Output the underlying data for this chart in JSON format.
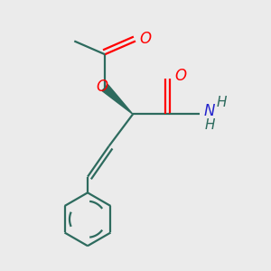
{
  "bg_color": "#ebebeb",
  "bond_color": "#2d6b5e",
  "bond_width": 1.6,
  "o_color": "#ff0000",
  "n_color": "#2222cc",
  "fig_size": [
    3.0,
    3.0
  ],
  "dpi": 100,
  "xlim": [
    0,
    10
  ],
  "ylim": [
    0,
    10
  ],
  "bond_color_dark": "#2d6b5e",
  "amide_o_color": "#dd1111",
  "acetate_o_color": "#dd1111"
}
